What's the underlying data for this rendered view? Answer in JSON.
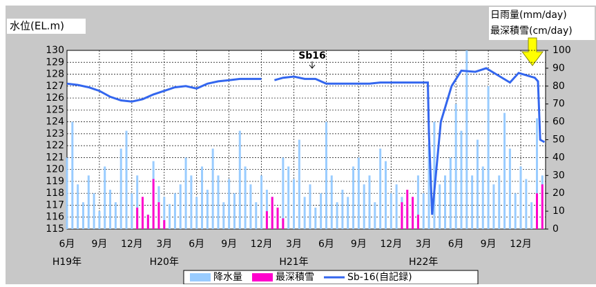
{
  "chart_data": {
    "type": "combo",
    "ylabel": "水位(EL.m)",
    "y2label": [
      "日雨量(mm/day)",
      "最深積雪(cm/day)"
    ],
    "annotation": "Sb16",
    "xlim": [
      0,
      44.3
    ],
    "xticks": [
      {
        "value": 0,
        "label": "6月"
      },
      {
        "value": 3,
        "label": "9月"
      },
      {
        "value": 6,
        "label": "12月"
      },
      {
        "value": 9,
        "label": "3月"
      },
      {
        "value": 12,
        "label": "6月"
      },
      {
        "value": 15,
        "label": "9月"
      },
      {
        "value": 18,
        "label": "12月"
      },
      {
        "value": 21,
        "label": "3月"
      },
      {
        "value": 24,
        "label": "6月"
      },
      {
        "value": 27,
        "label": "9月"
      },
      {
        "value": 30,
        "label": "12月"
      },
      {
        "value": 33,
        "label": "3月"
      },
      {
        "value": 36,
        "label": "6月"
      },
      {
        "value": 39,
        "label": "9月"
      },
      {
        "value": 42,
        "label": "12月"
      }
    ],
    "year_labels": [
      {
        "value": 0,
        "label": "H19年"
      },
      {
        "value": 9,
        "label": "H20年"
      },
      {
        "value": 21,
        "label": "H21年"
      },
      {
        "value": 33,
        "label": "H22年"
      }
    ],
    "ylim": [
      115,
      130
    ],
    "yticks": [
      115,
      116,
      117,
      118,
      119,
      120,
      121,
      122,
      123,
      124,
      125,
      126,
      127,
      128,
      129,
      130
    ],
    "y2lim": [
      0,
      100
    ],
    "y2ticks": [
      0,
      10,
      20,
      30,
      40,
      50,
      60,
      70,
      80,
      90,
      100
    ],
    "grid": true,
    "series": [
      {
        "name": "降水量",
        "kind": "bar",
        "axis": "y2",
        "color": "#99ccff",
        "x": [
          0,
          0.5,
          1,
          1.5,
          2,
          2.5,
          3,
          3.5,
          4,
          4.5,
          5,
          5.5,
          6,
          6.5,
          7,
          7.5,
          8,
          8.5,
          9,
          9.5,
          10,
          10.5,
          11,
          11.5,
          12,
          12.5,
          13,
          13.5,
          14,
          14.5,
          15,
          15.5,
          16,
          16.5,
          17,
          17.5,
          18,
          18.5,
          19,
          19.5,
          20,
          20.5,
          21,
          21.5,
          22,
          22.5,
          23,
          23.5,
          24,
          24.5,
          25,
          25.5,
          26,
          26.5,
          27,
          27.5,
          28,
          28.5,
          29,
          29.5,
          30,
          30.5,
          31,
          31.5,
          32,
          32.5,
          33,
          33.5,
          34,
          34.5,
          35,
          35.5,
          36,
          36.5,
          37,
          37.5,
          38,
          38.5,
          39,
          39.5,
          40,
          40.5,
          41,
          41.5,
          42,
          42.5,
          43,
          43.5,
          44
        ],
        "values": [
          40,
          60,
          25,
          15,
          30,
          20,
          10,
          35,
          22,
          15,
          45,
          55,
          20,
          30,
          12,
          8,
          38,
          24,
          18,
          14,
          20,
          25,
          40,
          30,
          18,
          35,
          22,
          45,
          30,
          15,
          28,
          20,
          55,
          35,
          25,
          15,
          30,
          22,
          18,
          12,
          40,
          35,
          28,
          50,
          18,
          25,
          12,
          20,
          60,
          30,
          15,
          22,
          18,
          35,
          40,
          25,
          30,
          15,
          45,
          38,
          20,
          25,
          18,
          12,
          10,
          30,
          20,
          48,
          60,
          25,
          30,
          40,
          70,
          55,
          100,
          30,
          50,
          35,
          80,
          25,
          30,
          65,
          45,
          20,
          35,
          28,
          15,
          62,
          30
        ]
      },
      {
        "name": "最深積雪",
        "kind": "bar",
        "axis": "y2",
        "color": "#ff00cc",
        "x": [
          6.5,
          7,
          7.5,
          8,
          8.5,
          9,
          18.5,
          19,
          19.5,
          20,
          31,
          31.5,
          32,
          32.5,
          43.5,
          44
        ],
        "values": [
          12,
          18,
          8,
          28,
          15,
          5,
          10,
          18,
          12,
          6,
          15,
          22,
          18,
          8,
          20,
          25
        ]
      },
      {
        "name": "Sb-16(自記録)",
        "kind": "line",
        "axis": "y",
        "color": "#3366ee",
        "x": [
          0,
          1,
          2,
          3,
          4,
          5,
          6,
          7,
          8,
          9,
          10,
          11,
          12,
          13,
          14,
          15,
          16,
          18,
          18.6,
          19.2,
          20,
          21,
          22,
          23,
          24,
          25,
          26,
          27,
          28,
          29,
          30,
          31,
          32,
          33.4,
          33.5,
          33.8,
          34.6,
          35.6,
          36.5,
          37.8,
          38.8,
          41,
          41.8,
          43.3,
          43.6,
          43.8,
          44.2
        ],
        "values": [
          127.2,
          127.1,
          126.9,
          126.6,
          126.1,
          125.8,
          125.7,
          125.9,
          126.3,
          126.6,
          126.9,
          127.0,
          126.8,
          127.2,
          127.4,
          127.5,
          127.6,
          127.6,
          null,
          127.5,
          127.7,
          127.8,
          127.6,
          127.6,
          127.2,
          127.2,
          127.2,
          127.2,
          127.2,
          127.3,
          127.3,
          127.3,
          127.3,
          127.3,
          123.0,
          116.2,
          124.0,
          127.0,
          128.3,
          128.2,
          128.5,
          127.3,
          128.1,
          127.7,
          127.4,
          122.5,
          122.3
        ]
      }
    ]
  }
}
